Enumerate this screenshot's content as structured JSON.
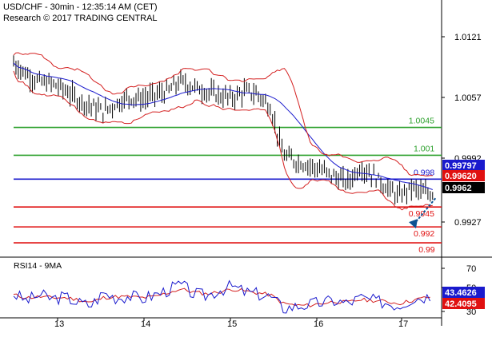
{
  "header": {
    "title": "USD/CHF - 30min - 12:35:14 AM (CET)",
    "subtitle": "Research © 2017 TRADING CENTRAL"
  },
  "colors": {
    "resistance": "#2ca02c",
    "pivot": "#1a1acd",
    "support": "#e01010",
    "price_bars": "#000000",
    "bollinger": "#d42020",
    "moving_average": "#1a1acd",
    "rsi": "#1a1acd",
    "rsi_ma": "#d42020",
    "forecast_arrow": "#0b5394"
  },
  "chart_data": [
    {
      "type": "line",
      "title": "USD/CHF - 30min",
      "x_ticks": [
        "13",
        "14",
        "15",
        "16",
        "17"
      ],
      "y_ticks": [
        "1.0121",
        "1.0057",
        "0.9992",
        "0.9927"
      ],
      "ylim": [
        0.9886,
        1.0175
      ],
      "levels": [
        {
          "name": "resistance-2",
          "value": 1.0045,
          "label": "1.0045",
          "kind": "resistance"
        },
        {
          "name": "resistance-1",
          "value": 1.001,
          "label": "1.001",
          "kind": "resistance"
        },
        {
          "name": "pivot",
          "value": 0.998,
          "label": "0.998",
          "kind": "pivot"
        },
        {
          "name": "support-1",
          "value": 0.9945,
          "label": "0.9945",
          "kind": "support"
        },
        {
          "name": "support-2",
          "value": 0.992,
          "label": "0.992",
          "kind": "support"
        },
        {
          "name": "support-3",
          "value": 0.99,
          "label": "0.99",
          "kind": "support"
        }
      ],
      "value_tags": [
        {
          "label": "0.99797",
          "value": 0.99797,
          "color": "#1a1acd"
        },
        {
          "label": "0.99620",
          "value": 0.9962,
          "color": "#e01010"
        },
        {
          "label": "0.9962",
          "value": 0.9962,
          "color": "#000000"
        }
      ],
      "price_path": {
        "x": [
          0,
          3,
          6,
          9,
          12,
          15,
          18,
          21,
          24,
          27,
          30,
          33,
          36,
          39,
          42,
          45,
          48,
          51,
          54,
          57,
          60,
          63,
          66,
          69,
          72,
          75,
          78,
          81,
          84,
          87,
          90,
          93,
          96,
          98
        ],
        "y": [
          1.0126,
          1.0112,
          1.0102,
          1.01,
          1.0092,
          1.008,
          1.0072,
          1.0065,
          1.0075,
          1.0083,
          1.008,
          1.0086,
          1.009,
          1.0103,
          1.0096,
          1.009,
          1.0085,
          1.0082,
          1.009,
          1.0087,
          1.007,
          1.001,
          1.0002,
          0.9998,
          0.9991,
          0.9983,
          0.9976,
          0.9995,
          0.9985,
          0.997,
          0.9958,
          0.997,
          0.9962,
          0.9962
        ]
      },
      "forecast": {
        "from": 0.9962,
        "to": 0.9918
      }
    },
    {
      "type": "line",
      "title": "RSI14 - 9MA",
      "y_ticks": [
        "70",
        "50",
        "30"
      ],
      "ylim": [
        20,
        80
      ],
      "value_tags": [
        {
          "label": "43.4626",
          "value": 43.4626,
          "color": "#1a1acd"
        },
        {
          "label": "42.4095",
          "value": 42.4095,
          "color": "#e01010"
        }
      ],
      "rsi": {
        "x": [
          0,
          3,
          6,
          9,
          12,
          15,
          18,
          21,
          24,
          27,
          30,
          33,
          36,
          39,
          42,
          45,
          48,
          51,
          54,
          57,
          60,
          63,
          66,
          69,
          72,
          75,
          78,
          81,
          84,
          87,
          90,
          93,
          96,
          98
        ],
        "y": [
          45,
          38,
          44,
          40,
          42,
          36,
          33,
          46,
          41,
          43,
          40,
          44,
          49,
          55,
          45,
          43,
          49,
          53,
          47,
          45,
          42,
          30,
          32,
          34,
          36,
          38,
          35,
          41,
          38,
          36,
          33,
          40,
          42,
          43.4626
        ]
      },
      "ma": {
        "x": [
          0,
          3,
          6,
          9,
          12,
          15,
          18,
          21,
          24,
          27,
          30,
          33,
          36,
          39,
          42,
          45,
          48,
          51,
          54,
          57,
          60,
          63,
          66,
          69,
          72,
          75,
          78,
          81,
          84,
          87,
          90,
          93,
          96,
          98
        ],
        "y": [
          44,
          41,
          42,
          41,
          41,
          39,
          36,
          41,
          42,
          42,
          41,
          42,
          46,
          50,
          47,
          45,
          47,
          50,
          48,
          46,
          44,
          35,
          33,
          33,
          35,
          37,
          36,
          39,
          38,
          37,
          35,
          38,
          41,
          42.4095
        ]
      }
    }
  ]
}
